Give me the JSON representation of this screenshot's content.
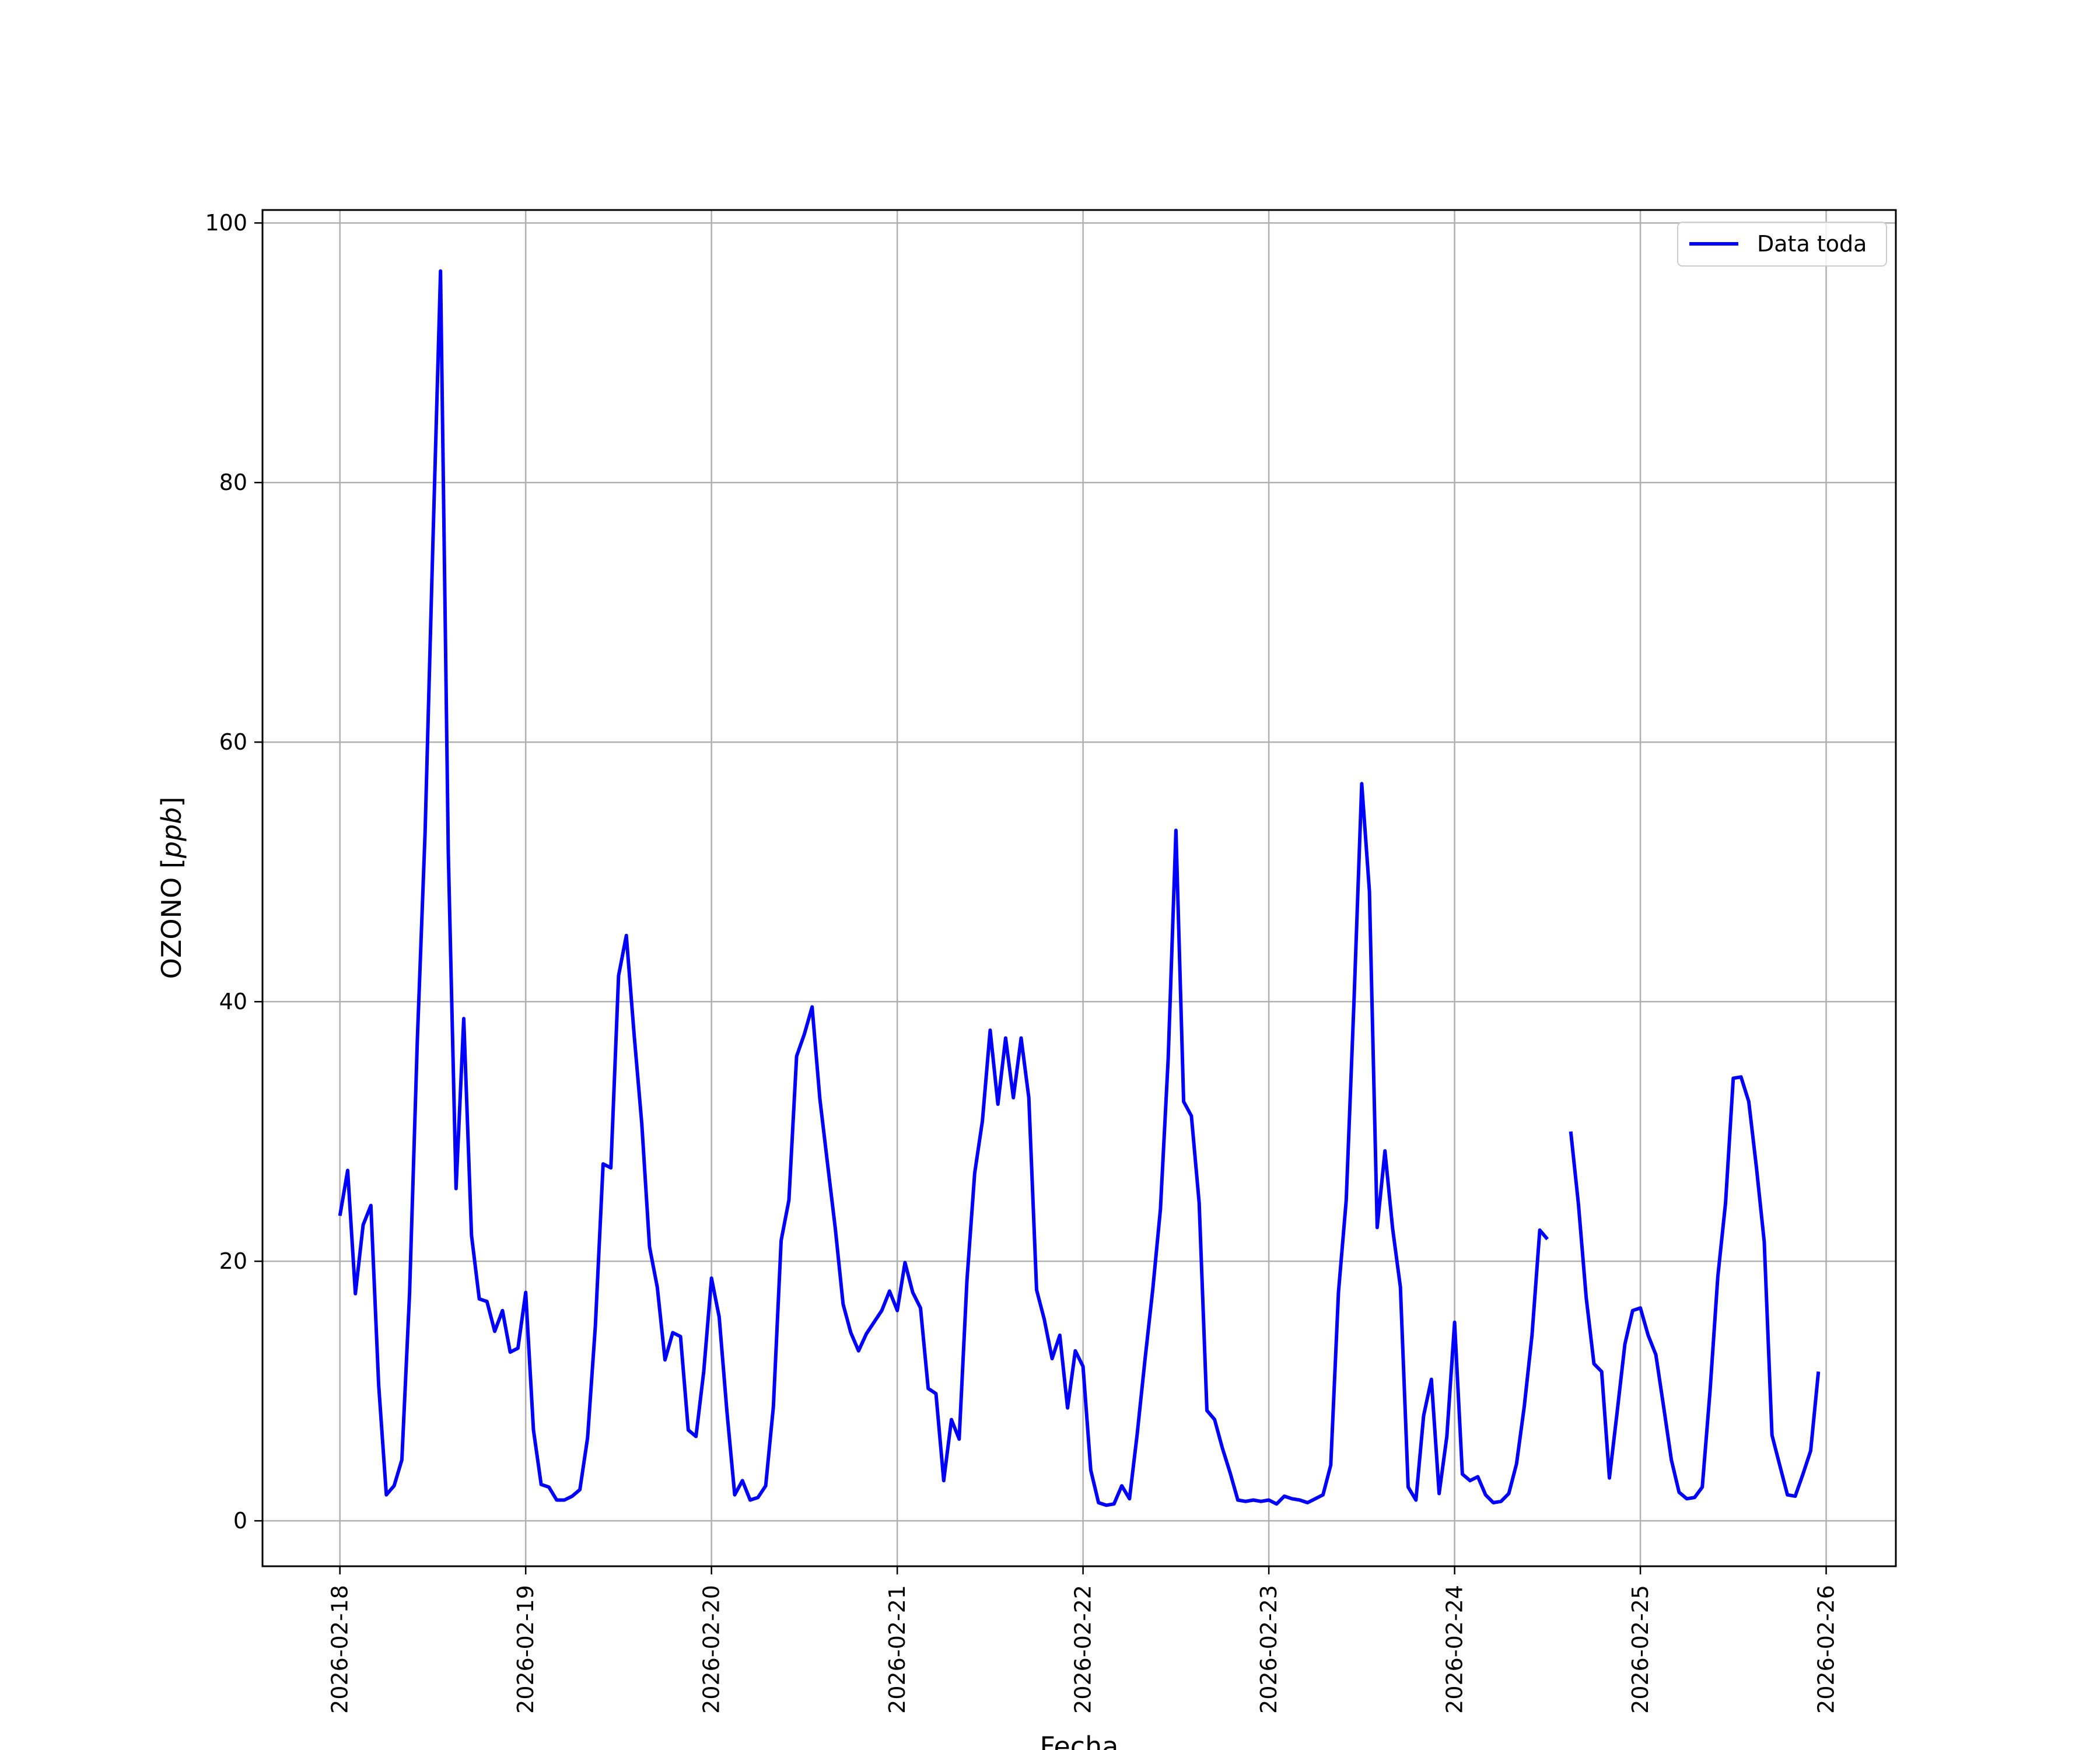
{
  "chart_data": {
    "type": "line",
    "xlabel": "Fecha",
    "ylabel_main": "OZONO [",
    "ylabel_unit": "ppb",
    "ylabel_close": "]",
    "xlim": [
      "2026-02-17T14:00",
      "2026-02-26T09:00"
    ],
    "ylim": [
      -3.5,
      101
    ],
    "grid": true,
    "legend_position": "upper right",
    "line_color": "#0000ff",
    "x_ticks": [
      "2026-02-18",
      "2026-02-19",
      "2026-02-20",
      "2026-02-21",
      "2026-02-22",
      "2026-02-23",
      "2026-02-24",
      "2026-02-25",
      "2026-02-26"
    ],
    "y_ticks": [
      0,
      20,
      40,
      60,
      80,
      100
    ],
    "series": [
      {
        "name": "Data toda",
        "start": "2026-02-18T00:00",
        "interval_hours": 1,
        "values": [
          23.5,
          27.0,
          17.5,
          22.8,
          24.3,
          10.5,
          2.0,
          2.7,
          4.7,
          17.5,
          37.0,
          53.0,
          75.0,
          96.3,
          51.5,
          25.6,
          38.7,
          22.0,
          17.1,
          16.9,
          14.6,
          16.2,
          13.0,
          13.3,
          17.6,
          7.0,
          2.8,
          2.6,
          1.6,
          1.6,
          1.9,
          2.4,
          6.4,
          15.0,
          27.5,
          27.2,
          42.0,
          45.1,
          37.5,
          30.6,
          21.1,
          18.0,
          12.4,
          14.5,
          14.2,
          7.0,
          6.5,
          11.5,
          18.7,
          15.7,
          8.4,
          2.0,
          3.1,
          1.6,
          1.8,
          2.7,
          8.8,
          21.6,
          24.7,
          35.8,
          37.5,
          39.6,
          32.5,
          27.5,
          22.5,
          16.7,
          14.5,
          13.1,
          14.4,
          15.3,
          16.2,
          17.7,
          16.2,
          19.9,
          17.6,
          16.4,
          10.2,
          9.8,
          3.1,
          7.8,
          6.3,
          18.5,
          26.8,
          30.8,
          37.8,
          32.1,
          37.2,
          32.6,
          37.2,
          32.6,
          17.8,
          15.5,
          12.5,
          14.3,
          8.7,
          13.1,
          11.9,
          3.9,
          1.4,
          1.2,
          1.3,
          2.7,
          1.7,
          6.7,
          12.4,
          17.8,
          24.0,
          35.6,
          53.2,
          32.3,
          31.2,
          24.5,
          8.5,
          7.8,
          5.6,
          3.7,
          1.6,
          1.5,
          1.6,
          1.5,
          1.6,
          1.3,
          1.9,
          1.7,
          1.6,
          1.4,
          1.7,
          2.0,
          4.3,
          17.6,
          24.7,
          40.0,
          56.8,
          48.5,
          22.6,
          28.5,
          22.5,
          18.0,
          2.6,
          1.6,
          8.1,
          10.9,
          2.1,
          6.5,
          15.3,
          3.6,
          3.1,
          3.4,
          2.0,
          1.4,
          1.5,
          2.1,
          4.4,
          8.8,
          14.3,
          22.4,
          21.7,
          null,
          null,
          30.0,
          24.4,
          17.2,
          12.1,
          11.5,
          3.3,
          8.4,
          13.6,
          16.2,
          16.4,
          14.3,
          12.8,
          8.8,
          4.7,
          2.2,
          1.7,
          1.8,
          2.6,
          10.0,
          18.8,
          24.5,
          34.1,
          34.2,
          32.3,
          27.2,
          21.5,
          6.6,
          4.3,
          2.0,
          1.9,
          3.6,
          5.4,
          11.5
        ]
      }
    ]
  }
}
